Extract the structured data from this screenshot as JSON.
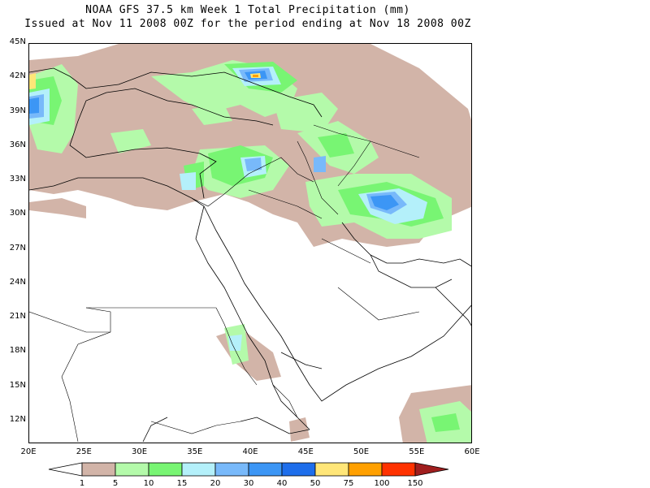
{
  "title_line1": "NOAA GFS 37.5 km Week 1 Total Precipitation (mm)",
  "title_line2": "Issued at Nov 11 2008 00Z for the period ending at Nov 18 2008 00Z",
  "map": {
    "lon_range": [
      20,
      60
    ],
    "lat_range": [
      10,
      45
    ],
    "lat_ticks": [
      "45N",
      "42N",
      "39N",
      "36N",
      "33N",
      "30N",
      "27N",
      "24N",
      "21N",
      "18N",
      "15N",
      "12N"
    ],
    "lat_values": [
      45,
      42,
      39,
      36,
      33,
      30,
      27,
      24,
      21,
      18,
      15,
      12
    ],
    "lon_ticks": [
      "20E",
      "25E",
      "30E",
      "35E",
      "40E",
      "45E",
      "50E",
      "55E",
      "60E"
    ],
    "lon_values": [
      20,
      25,
      30,
      35,
      40,
      45,
      50,
      55,
      60
    ]
  },
  "colorbar": {
    "labels": [
      "1",
      "5",
      "10",
      "15",
      "20",
      "30",
      "40",
      "50",
      "75",
      "100",
      "150"
    ],
    "colors": [
      "#ffffff",
      "#d2b4a8",
      "#b4faaa",
      "#78f573",
      "#b4f0fa",
      "#78b9fa",
      "#3c96f5",
      "#1e6eeb",
      "#ffe678",
      "#ffa000",
      "#ff3200",
      "#a01e1e"
    ]
  }
}
